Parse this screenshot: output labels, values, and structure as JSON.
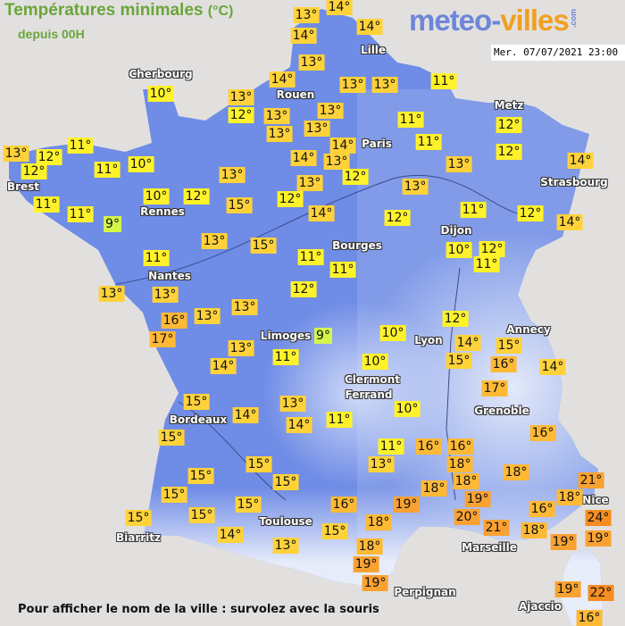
{
  "header": {
    "title": "Températures minimales",
    "unit": "(°C)",
    "subtitle": "depuis 00H",
    "logo_main": "meteo-",
    "logo_accent": "villes",
    "logo_suffix": ".com",
    "timestamp": "Mer. 07/07/2021 23:00"
  },
  "footer": {
    "hint": "Pour afficher le nom de la ville : survolez avec la souris"
  },
  "colors": {
    "background": "#e2e0df",
    "land": "#6f8ce6",
    "temp_9": "#d4f54a",
    "temp_10_12": "#fff22a",
    "temp_13_15": "#ffd23a",
    "temp_16_18": "#ffb935",
    "temp_19_21": "#f9a232",
    "temp_22_plus": "#f58d22"
  },
  "cities": [
    "Lille",
    "Rouen",
    "Paris",
    "Metz",
    "Strasbourg",
    "Cherbourg",
    "Brest",
    "Rennes",
    "Nantes",
    "Dijon",
    "Bourges",
    "Limoges",
    "Lyon",
    "Annecy",
    "Clermont",
    "Ferrand",
    "Grenoble",
    "Bordeaux",
    "Biarritz",
    "Toulouse",
    "Perpignan",
    "Marseille",
    "Nice",
    "Ajaccio"
  ],
  "temperatures": [
    "13°",
    "14°",
    "14°",
    "14°",
    "13°",
    "14°",
    "13°",
    "12°",
    "13°",
    "13°",
    "13°",
    "13°",
    "14°",
    "13°",
    "14°",
    "12°",
    "13°",
    "13°",
    "13°",
    "11°",
    "11°",
    "11°",
    "12°",
    "12°",
    "13°",
    "14°",
    "13°",
    "12°",
    "11°",
    "12°",
    "14°",
    "10°",
    "12°",
    "11°",
    "11°",
    "11°",
    "12°",
    "14°",
    "10°",
    "11°",
    "13°",
    "12°",
    "12°",
    "11°",
    "10°",
    "11°",
    "11°",
    "9°",
    "10°",
    "12°",
    "13°",
    "15°",
    "12°",
    "13°",
    "15°",
    "11°",
    "13°",
    "13°",
    "16°",
    "13°",
    "13°",
    "17°",
    "9°",
    "13°",
    "14°",
    "11°",
    "10°",
    "10°",
    "10°",
    "11°",
    "13°",
    "14°",
    "15°",
    "14°",
    "15°",
    "15°",
    "15°",
    "15°",
    "15°",
    "15°",
    "15°",
    "15°",
    "14°",
    "13°",
    "16°",
    "15°",
    "18°",
    "19°",
    "18°",
    "19°",
    "19°",
    "12°",
    "14°",
    "15°",
    "15°",
    "16°",
    "14°",
    "17°",
    "16°",
    "11°",
    "13°",
    "16°",
    "16°",
    "18°",
    "18°",
    "18°",
    "18°",
    "19°",
    "20°",
    "21°",
    "16°",
    "18°",
    "21°",
    "18°",
    "24°",
    "19°",
    "19°",
    "19°",
    "22°",
    "16°"
  ]
}
